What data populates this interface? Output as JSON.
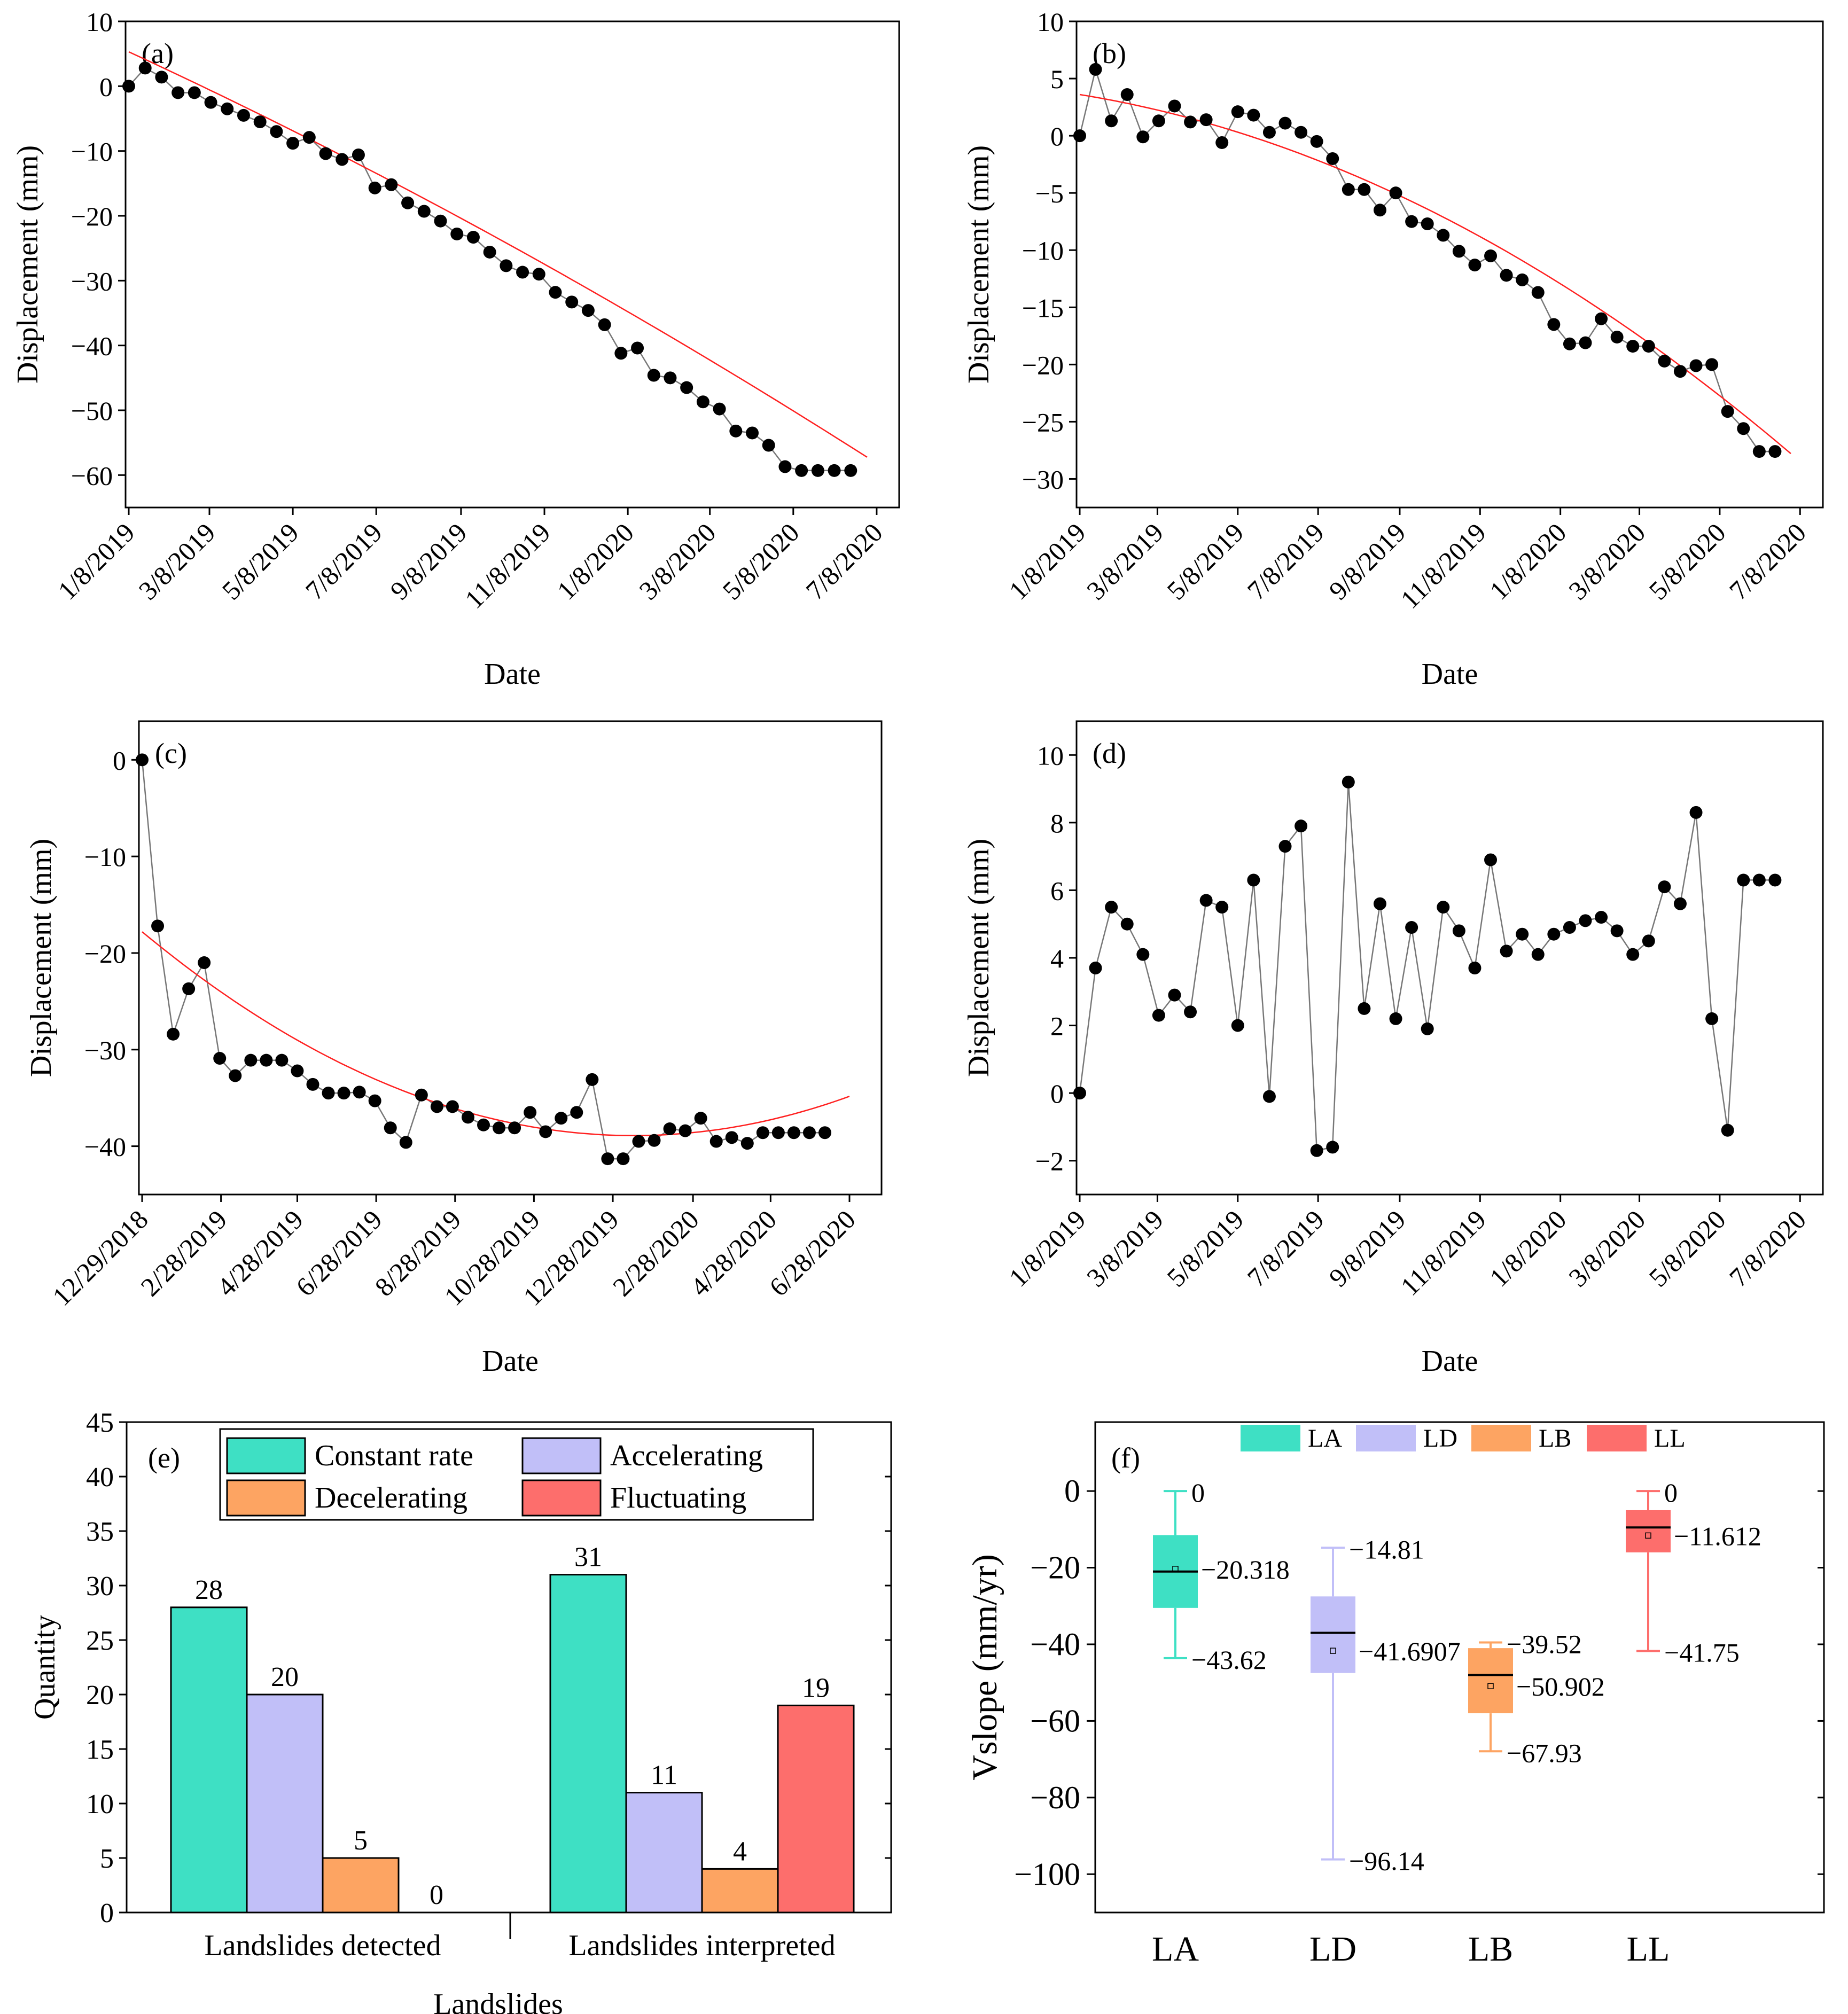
{
  "colors": {
    "fit": "#ff2020",
    "line": "#777777",
    "marker": "#000000",
    "constant": "#3ee0c4",
    "accelerating": "#c1bff8",
    "decelerating": "#fda462",
    "fluctuating": "#fd6e6c"
  },
  "chart_data": [
    {
      "type": "line",
      "panel": "(a)",
      "xlabel": "Date",
      "ylabel": "Displacement (mm)",
      "x_ticks": [
        "1/8/2019",
        "3/8/2019",
        "5/8/2019",
        "7/8/2019",
        "9/8/2019",
        "11/8/2019",
        "1/8/2020",
        "3/8/2020",
        "5/8/2020",
        "7/8/2020"
      ],
      "x_tick_days": [
        0,
        59,
        120,
        181,
        243,
        304,
        365,
        425,
        486,
        547
      ],
      "xlim": [
        0,
        540
      ],
      "y_ticks": [
        "10",
        "0",
        "−10",
        "−20",
        "−30",
        "−40",
        "−50",
        "−60"
      ],
      "y_tick_values": [
        10,
        0,
        -10,
        -20,
        -30,
        -40,
        -50,
        -60
      ],
      "ylim": [
        -65,
        10
      ],
      "fit": {
        "kind": "poly2",
        "coef": [
          5.3,
          -0.0974,
          -3.41e-05
        ]
      },
      "series": [
        {
          "name": "Displacement",
          "x": [
            0,
            12,
            24,
            36,
            48,
            60,
            72,
            84,
            96,
            108,
            120,
            132,
            144,
            156,
            168,
            180,
            192,
            204,
            216,
            228,
            240,
            252,
            264,
            276,
            288,
            300,
            312,
            324,
            336,
            348,
            360,
            372,
            384,
            396,
            408,
            420,
            432,
            444,
            456,
            468,
            480,
            492,
            504,
            516,
            528
          ],
          "y": [
            0,
            2.8,
            1.4,
            -1,
            -1,
            -2.5,
            -3.5,
            -4.5,
            -5.5,
            -7,
            -8.8,
            -7.9,
            -10.4,
            -11.3,
            -10.6,
            -15.7,
            -15.2,
            -18,
            -19.3,
            -20.8,
            -22.8,
            -23.3,
            -25.6,
            -27.7,
            -28.7,
            -29,
            -31.8,
            -33.3,
            -34.6,
            -36.8,
            -41.2,
            -40.4,
            -44.6,
            -45,
            -46.5,
            -48.7,
            -49.8,
            -53.2,
            -53.5,
            -55.4,
            -58.7,
            -59.3,
            -59.3,
            -59.3,
            -59.3
          ]
        }
      ]
    },
    {
      "type": "line",
      "panel": "(b)",
      "xlabel": "Date",
      "ylabel": "Displacement (mm)",
      "x_ticks": [
        "1/8/2019",
        "3/8/2019",
        "5/8/2019",
        "7/8/2019",
        "9/8/2019",
        "11/8/2019",
        "1/8/2020",
        "3/8/2020",
        "5/8/2020",
        "7/8/2020"
      ],
      "x_tick_days": [
        0,
        59,
        120,
        181,
        243,
        304,
        365,
        425,
        486,
        547
      ],
      "xlim": [
        0,
        540
      ],
      "y_ticks": [
        "10",
        "5",
        "0",
        "−5",
        "−10",
        "−15",
        "−20",
        "−25",
        "−30"
      ],
      "y_tick_values": [
        10,
        5,
        0,
        -5,
        -10,
        -15,
        -20,
        -25,
        -30
      ],
      "ylim": [
        -32.5,
        10
      ],
      "fit": {
        "kind": "poly2",
        "coef": [
          3.6,
          -0.0186,
          -7.32e-05
        ]
      },
      "series": [
        {
          "name": "Displacement",
          "x": [
            0,
            12,
            24,
            36,
            48,
            60,
            72,
            84,
            96,
            108,
            120,
            132,
            144,
            156,
            168,
            180,
            192,
            204,
            216,
            228,
            240,
            252,
            264,
            276,
            288,
            300,
            312,
            324,
            336,
            348,
            360,
            372,
            384,
            396,
            408,
            420,
            432,
            444,
            456,
            468,
            480,
            492,
            504,
            516,
            528
          ],
          "y": [
            0,
            5.8,
            1.3,
            3.6,
            -0.1,
            1.3,
            2.6,
            1.2,
            1.4,
            -0.6,
            2.1,
            1.8,
            0.3,
            1.1,
            0.3,
            -0.5,
            -2,
            -4.7,
            -4.7,
            -6.5,
            -5,
            -7.5,
            -7.7,
            -8.7,
            -10.1,
            -11.3,
            -10.5,
            -12.2,
            -12.6,
            -13.7,
            -16.5,
            -18.2,
            -18.1,
            -16,
            -17.6,
            -18.4,
            -18.4,
            -19.7,
            -20.6,
            -20.1,
            -20,
            -24.1,
            -25.6,
            -27.6,
            -27.6
          ]
        }
      ]
    },
    {
      "type": "line",
      "panel": "(c)",
      "xlabel": "Date",
      "ylabel": "Displacement (mm)",
      "x_ticks": [
        "12/29/2018",
        "2/28/2019",
        "4/28/2019",
        "6/28/2019",
        "8/28/2019",
        "10/28/2019",
        "12/28/2019",
        "2/28/2020",
        "4/28/2020",
        "6/28/2020"
      ],
      "x_tick_days": [
        0,
        61,
        120,
        181,
        242,
        303,
        364,
        426,
        486,
        547
      ],
      "xlim": [
        0,
        547
      ],
      "y_ticks": [
        "0",
        "−10",
        "−20",
        "−30",
        "−40"
      ],
      "y_tick_values": [
        0,
        -10,
        -20,
        -30,
        -40
      ],
      "ylim": [
        -45,
        4
      ],
      "fit": {
        "kind": "poly2",
        "coef": [
          -17.8,
          -0.111,
          0.000146
        ]
      },
      "series": [
        {
          "name": "Displacement",
          "x": [
            0,
            12,
            24,
            36,
            48,
            60,
            72,
            84,
            96,
            108,
            120,
            132,
            144,
            156,
            168,
            180,
            192,
            204,
            216,
            228,
            240,
            252,
            264,
            276,
            288,
            300,
            312,
            324,
            336,
            348,
            360,
            372,
            384,
            396,
            408,
            420,
            432,
            444,
            456,
            468,
            480,
            492,
            504,
            516,
            528
          ],
          "y": [
            0,
            -17.2,
            -28.4,
            -23.7,
            -21,
            -30.9,
            -32.7,
            -31.1,
            -31.1,
            -31.1,
            -32.2,
            -33.6,
            -34.5,
            -34.5,
            -34.4,
            -35.3,
            -38.1,
            -39.6,
            -34.7,
            -35.9,
            -35.9,
            -37,
            -37.8,
            -38.1,
            -38.1,
            -36.5,
            -38.5,
            -37.1,
            -36.5,
            -33.1,
            -41.3,
            -41.3,
            -39.5,
            -39.4,
            -38.2,
            -38.4,
            -37.1,
            -39.5,
            -39.1,
            -39.7,
            -38.6,
            -38.6,
            -38.6,
            -38.6,
            -38.6
          ]
        }
      ]
    },
    {
      "type": "line",
      "panel": "(d)",
      "xlabel": "Date",
      "ylabel": "Displacement (mm)",
      "x_ticks": [
        "1/8/2019",
        "3/8/2019",
        "5/8/2019",
        "7/8/2019",
        "9/8/2019",
        "11/8/2019",
        "1/8/2020",
        "3/8/2020",
        "5/8/2020",
        "7/8/2020"
      ],
      "x_tick_days": [
        0,
        59,
        120,
        181,
        243,
        304,
        365,
        425,
        486,
        547
      ],
      "xlim": [
        0,
        540
      ],
      "y_ticks": [
        "10",
        "8",
        "6",
        "4",
        "2",
        "0",
        "−2"
      ],
      "y_tick_values": [
        10,
        8,
        6,
        4,
        2,
        0,
        -2
      ],
      "ylim": [
        -3,
        11
      ],
      "series": [
        {
          "name": "Displacement",
          "x": [
            0,
            12,
            24,
            36,
            48,
            60,
            72,
            84,
            96,
            108,
            120,
            132,
            144,
            156,
            168,
            180,
            192,
            204,
            216,
            228,
            240,
            252,
            264,
            276,
            288,
            300,
            312,
            324,
            336,
            348,
            360,
            372,
            384,
            396,
            408,
            420,
            432,
            444,
            456,
            468,
            480,
            492,
            504,
            516,
            528
          ],
          "y": [
            0,
            3.7,
            5.5,
            5,
            4.1,
            2.3,
            2.9,
            2.4,
            5.7,
            5.5,
            2,
            6.3,
            -0.1,
            7.3,
            7.9,
            -1.7,
            -1.6,
            9.2,
            2.5,
            5.6,
            2.2,
            4.9,
            1.9,
            5.5,
            4.8,
            3.7,
            6.9,
            4.2,
            4.7,
            4.1,
            4.7,
            4.9,
            5.1,
            5.2,
            4.8,
            4.1,
            4.5,
            6.1,
            5.6,
            8.3,
            2.2,
            -1.1,
            6.3,
            6.3,
            6.3
          ]
        }
      ]
    },
    {
      "type": "bar",
      "panel": "(e)",
      "xlabel": "Landslides",
      "ylabel": "Quantity",
      "categories": [
        "Landslides detected",
        "Landslides interpreted"
      ],
      "y_ticks": [
        "0",
        "5",
        "10",
        "15",
        "20",
        "25",
        "30",
        "35",
        "40",
        "45"
      ],
      "y_tick_values": [
        0,
        5,
        10,
        15,
        20,
        25,
        30,
        35,
        40,
        45
      ],
      "ylim": [
        0,
        45
      ],
      "series": [
        {
          "name": "Constant rate",
          "values": [
            28,
            31
          ],
          "labels": [
            "28",
            "31"
          ]
        },
        {
          "name": "Accelerating",
          "values": [
            20,
            11
          ],
          "labels": [
            "20",
            "11"
          ]
        },
        {
          "name": "Decelerating",
          "values": [
            5,
            4
          ],
          "labels": [
            "5",
            "4"
          ]
        },
        {
          "name": "Fluctuating",
          "values": [
            0,
            19
          ],
          "labels": [
            "0",
            "19"
          ]
        }
      ]
    },
    {
      "type": "box",
      "panel": "(f)",
      "ylabel": "Vslope (mm/yr)",
      "categories": [
        "LA",
        "LD",
        "LB",
        "LL"
      ],
      "legend": [
        "LA",
        "LD",
        "LB",
        "LL"
      ],
      "y_ticks": [
        "0",
        "−20",
        "−40",
        "−60",
        "−80",
        "−100"
      ],
      "y_tick_values": [
        0,
        -20,
        -40,
        -60,
        -80,
        -100
      ],
      "ylim": [
        -110,
        18
      ],
      "boxes": [
        {
          "name": "LA",
          "max": 0,
          "q3": -11.5,
          "median": -21,
          "q1": -30.5,
          "min": -43.62,
          "mean": -20.318,
          "labels": {
            "max": "0",
            "mean": "−20.318",
            "min": "−43.62"
          }
        },
        {
          "name": "LD",
          "max": -14.81,
          "q3": -27.5,
          "median": -37,
          "q1": -47.5,
          "min": -96.14,
          "mean": -41.6907,
          "labels": {
            "max": "−14.81",
            "mean": "−41.6907",
            "min": "−96.14"
          }
        },
        {
          "name": "LB",
          "max": -39.52,
          "q3": -41,
          "median": -48,
          "q1": -58,
          "min": -67.93,
          "mean": -50.902,
          "labels": {
            "max": "−39.52",
            "mean": "−50.902",
            "min": "−67.93"
          }
        },
        {
          "name": "LL",
          "max": 0,
          "q3": -5,
          "median": -9.5,
          "q1": -16,
          "min": -41.75,
          "mean": -11.612,
          "labels": {
            "max": "0",
            "mean": "−11.612",
            "min": "−41.75"
          }
        }
      ]
    }
  ]
}
